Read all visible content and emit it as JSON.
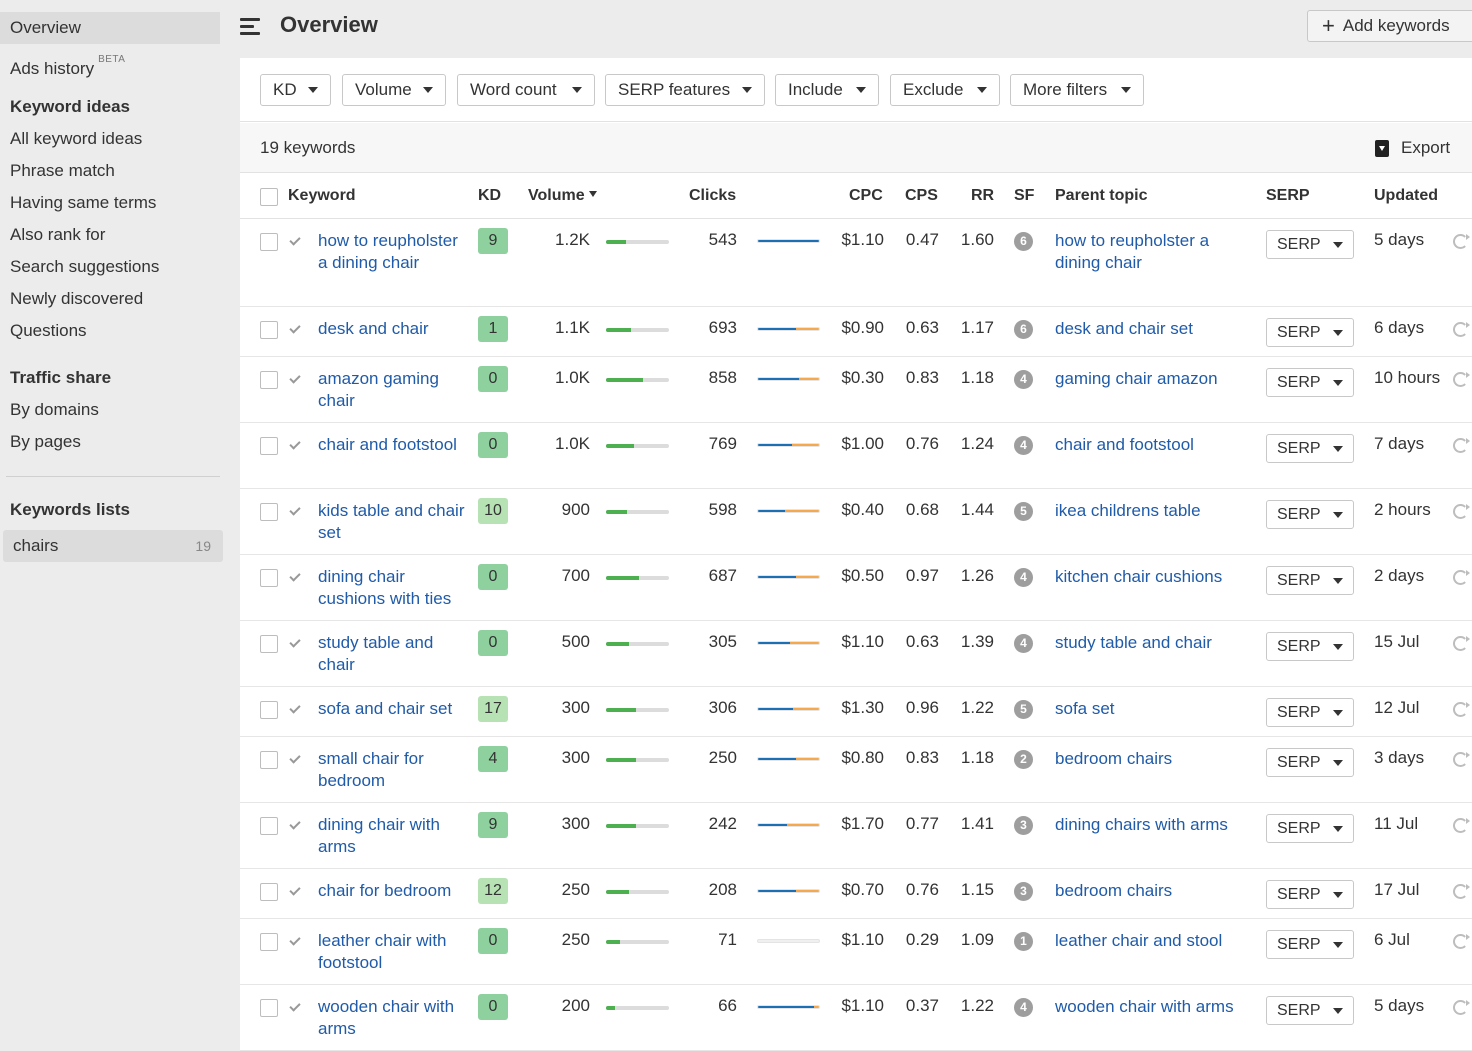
{
  "sidebar": {
    "overview": "Overview",
    "ads_history": "Ads history",
    "ads_badge": "BETA",
    "keyword_ideas_heading": "Keyword ideas",
    "keyword_ideas": [
      "All keyword ideas",
      "Phrase match",
      "Having same terms",
      "Also rank for",
      "Search suggestions",
      "Newly discovered",
      "Questions"
    ],
    "traffic_share_heading": "Traffic share",
    "traffic_share": [
      "By domains",
      "By pages"
    ],
    "lists_heading": "Keywords lists",
    "list": {
      "name": "chairs",
      "count": "19"
    }
  },
  "header": {
    "title": "Overview",
    "add_keywords": "Add keywords"
  },
  "filters": [
    "KD",
    "Volume",
    "Word count",
    "SERP features",
    "Include",
    "Exclude",
    "More filters"
  ],
  "summary": {
    "count_label": "19 keywords",
    "export": "Export"
  },
  "columns": {
    "keyword": "Keyword",
    "kd": "KD",
    "volume": "Volume",
    "clicks": "Clicks",
    "cpc": "CPC",
    "cps": "CPS",
    "rr": "RR",
    "sf": "SF",
    "parent_topic": "Parent topic",
    "serp": "SERP",
    "updated": "Updated"
  },
  "serp_button": "SERP",
  "colors": {
    "link": "#1f5ba8",
    "kd_easy": "#8fd19e",
    "kd_medium": "#b7e2b4",
    "organic": "#1a6fb5",
    "paid": "#f5a94c",
    "volume_bar": "#4caf50"
  },
  "rows": [
    {
      "keyword": "how to reupholster a dining chair",
      "kd": "9",
      "volume": "1.2K",
      "volume_level": 0.32,
      "clicks": "543",
      "organic_share": 1.0,
      "paid_share": 0.0,
      "cpc": "$1.10",
      "cps": "0.47",
      "rr": "1.60",
      "sf": "6",
      "parent_topic": "how to reupholster a dining chair",
      "updated": "5 days"
    },
    {
      "keyword": "desk and chair",
      "kd": "1",
      "volume": "1.1K",
      "volume_level": 0.4,
      "clicks": "693",
      "organic_share": 0.62,
      "paid_share": 0.38,
      "cpc": "$0.90",
      "cps": "0.63",
      "rr": "1.17",
      "sf": "6",
      "parent_topic": "desk and chair set",
      "updated": "6 days"
    },
    {
      "keyword": "amazon gaming chair",
      "kd": "0",
      "volume": "1.0K",
      "volume_level": 0.58,
      "clicks": "858",
      "organic_share": 0.67,
      "paid_share": 0.33,
      "cpc": "$0.30",
      "cps": "0.83",
      "rr": "1.18",
      "sf": "4",
      "parent_topic": "gaming chair amazon",
      "updated": "10 hours"
    },
    {
      "keyword": "chair and footstool",
      "kd": "0",
      "volume": "1.0K",
      "volume_level": 0.45,
      "clicks": "769",
      "organic_share": 0.55,
      "paid_share": 0.45,
      "cpc": "$1.00",
      "cps": "0.76",
      "rr": "1.24",
      "sf": "4",
      "parent_topic": "chair and footstool",
      "updated": "7 days"
    },
    {
      "keyword": "kids table and chair set",
      "kd": "10",
      "volume": "900",
      "volume_level": 0.34,
      "clicks": "598",
      "organic_share": 0.44,
      "paid_share": 0.56,
      "cpc": "$0.40",
      "cps": "0.68",
      "rr": "1.44",
      "sf": "5",
      "parent_topic": "ikea childrens table",
      "updated": "2 hours"
    },
    {
      "keyword": "dining chair cushions with ties",
      "kd": "0",
      "volume": "700",
      "volume_level": 0.52,
      "clicks": "687",
      "organic_share": 0.62,
      "paid_share": 0.38,
      "cpc": "$0.50",
      "cps": "0.97",
      "rr": "1.26",
      "sf": "4",
      "parent_topic": "kitchen chair cushions",
      "updated": "2 days"
    },
    {
      "keyword": "study table and chair",
      "kd": "0",
      "volume": "500",
      "volume_level": 0.36,
      "clicks": "305",
      "organic_share": 0.52,
      "paid_share": 0.48,
      "cpc": "$1.10",
      "cps": "0.63",
      "rr": "1.39",
      "sf": "4",
      "parent_topic": "study table and chair",
      "updated": "15 Jul"
    },
    {
      "keyword": "sofa and chair set",
      "kd": "17",
      "volume": "300",
      "volume_level": 0.48,
      "clicks": "306",
      "organic_share": 0.58,
      "paid_share": 0.42,
      "cpc": "$1.30",
      "cps": "0.96",
      "rr": "1.22",
      "sf": "5",
      "parent_topic": "sofa set",
      "updated": "12 Jul"
    },
    {
      "keyword": "small chair for bedroom",
      "kd": "4",
      "volume": "300",
      "volume_level": 0.48,
      "clicks": "250",
      "organic_share": 0.62,
      "paid_share": 0.38,
      "cpc": "$0.80",
      "cps": "0.83",
      "rr": "1.18",
      "sf": "2",
      "parent_topic": "bedroom chairs",
      "updated": "3 days"
    },
    {
      "keyword": "dining chair with arms",
      "kd": "9",
      "volume": "300",
      "volume_level": 0.48,
      "clicks": "242",
      "organic_share": 0.48,
      "paid_share": 0.52,
      "cpc": "$1.70",
      "cps": "0.77",
      "rr": "1.41",
      "sf": "3",
      "parent_topic": "dining chairs with arms",
      "updated": "11 Jul"
    },
    {
      "keyword": "chair for bedroom",
      "kd": "12",
      "volume": "250",
      "volume_level": 0.37,
      "clicks": "208",
      "organic_share": 0.62,
      "paid_share": 0.38,
      "cpc": "$0.70",
      "cps": "0.76",
      "rr": "1.15",
      "sf": "3",
      "parent_topic": "bedroom chairs",
      "updated": "17 Jul"
    },
    {
      "keyword": "leather chair with footstool",
      "kd": "0",
      "volume": "250",
      "volume_level": 0.22,
      "clicks": "71",
      "organic_share": 0.0,
      "paid_share": 0.0,
      "cpc": "$1.10",
      "cps": "0.29",
      "rr": "1.09",
      "sf": "1",
      "parent_topic": "leather chair and stool",
      "updated": "6 Jul"
    },
    {
      "keyword": "wooden chair with arms",
      "kd": "0",
      "volume": "200",
      "volume_level": 0.14,
      "clicks": "66",
      "organic_share": 0.92,
      "paid_share": 0.08,
      "cpc": "$1.10",
      "cps": "0.37",
      "rr": "1.22",
      "sf": "4",
      "parent_topic": "wooden chair with arms",
      "updated": "5 days"
    }
  ]
}
